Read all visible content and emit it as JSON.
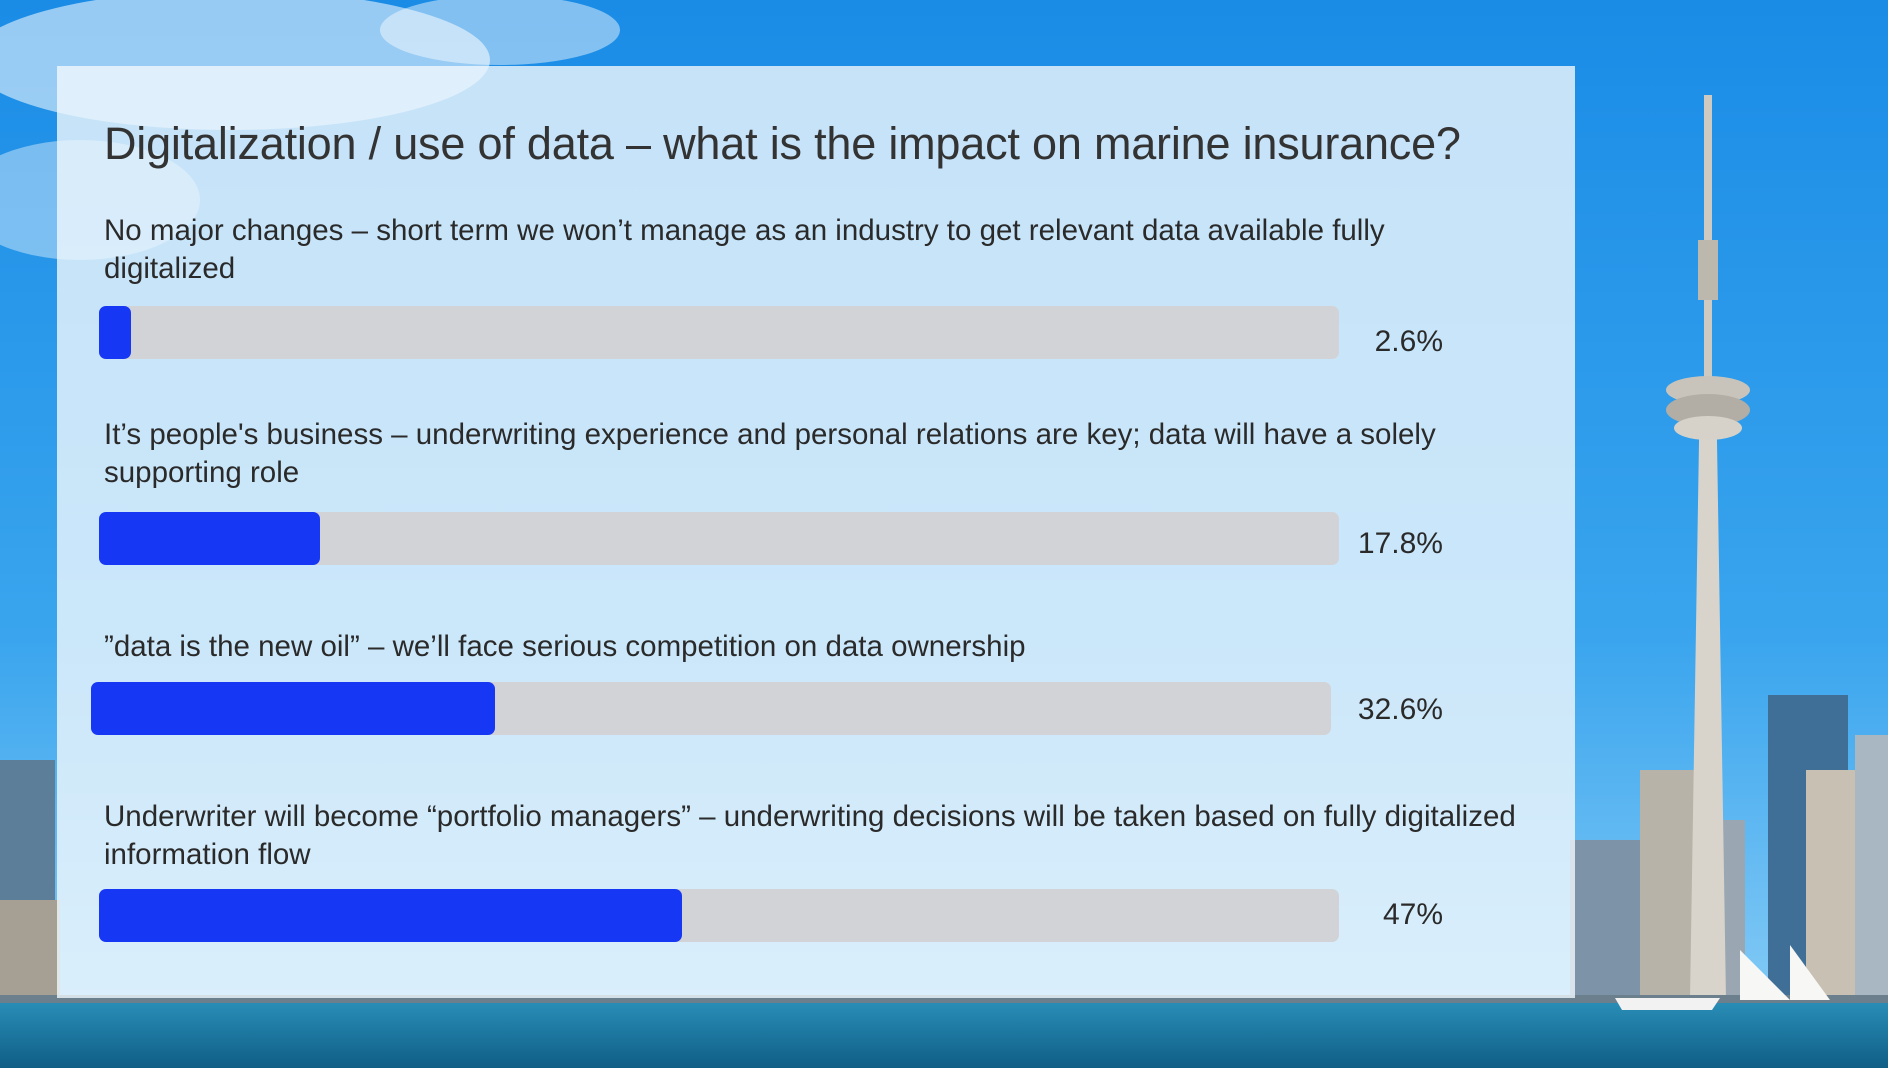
{
  "chart_data": {
    "type": "bar",
    "orientation": "horizontal",
    "title": "Digitalization / use of data – what is the impact on marine insurance?",
    "categories": [
      "No major changes – short term we won’t manage as an industry to get relevant data available fully digitalized",
      "It’s people's business – underwriting experience and personal relations are key; data will have a solely supporting role",
      "”data is the new oil” – we’ll face serious competition on data ownership",
      "Underwriter will become “portfolio managers” – underwriting decisions will be taken based on fully digitalized information flow"
    ],
    "values": [
      2.6,
      17.8,
      32.6,
      47
    ],
    "value_labels": [
      "2.6%",
      "17.8%",
      "32.6%",
      "47%"
    ],
    "xlim": [
      0,
      100
    ],
    "unit": "%",
    "grid": false,
    "bar_color": "#1638f5",
    "track_color": "#d2d2d4"
  }
}
